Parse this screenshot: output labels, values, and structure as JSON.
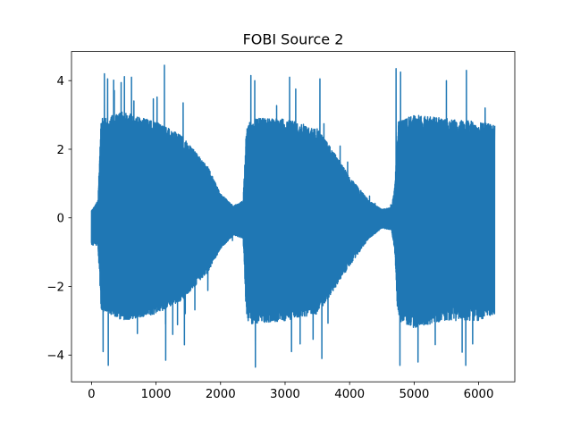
{
  "chart_data": {
    "type": "line",
    "title": "FOBI Source 2",
    "xlabel": "",
    "ylabel": "",
    "xlim": [
      -310,
      6560
    ],
    "ylim": [
      -4.78,
      4.85
    ],
    "x_ticks": [
      0,
      1000,
      2000,
      3000,
      4000,
      5000,
      6000
    ],
    "x_tick_labels": [
      "0",
      "1000",
      "2000",
      "3000",
      "4000",
      "5000",
      "6000"
    ],
    "y_ticks": [
      -4,
      -2,
      0,
      2,
      4
    ],
    "y_tick_labels": [
      "−4",
      "−2",
      "0",
      "2",
      "4"
    ],
    "grid": false,
    "legend": "none",
    "series": [
      {
        "color": "#1f77b4",
        "n_points": 6250,
        "envelope_x": [
          0,
          100,
          150,
          500,
          1000,
          1400,
          1800,
          2000,
          2200,
          2350,
          2400,
          2450,
          3000,
          3500,
          3800,
          4000,
          4300,
          4500,
          4650,
          4700,
          4750,
          5000,
          5500,
          6000,
          6249
        ],
        "envelope_upper": [
          0.2,
          0.5,
          2.9,
          3.1,
          2.8,
          2.4,
          1.5,
          0.7,
          0.35,
          0.5,
          2.6,
          2.9,
          2.9,
          2.6,
          1.8,
          1.2,
          0.5,
          0.25,
          0.3,
          0.9,
          2.8,
          3.0,
          2.9,
          2.8,
          2.7
        ],
        "envelope_lower": [
          -0.8,
          -0.8,
          -2.7,
          -3.0,
          -2.8,
          -2.4,
          -1.6,
          -0.9,
          -0.5,
          -0.6,
          -2.9,
          -3.1,
          -3.0,
          -2.8,
          -2.0,
          -1.4,
          -0.6,
          -0.3,
          -0.35,
          -1.0,
          -3.0,
          -3.2,
          -3.0,
          -3.0,
          -2.8
        ],
        "peaks_x": [
          200,
          250,
          620,
          1130,
          1420,
          2470,
          2530,
          3070,
          3540,
          4720,
          4790,
          5500,
          5810,
          6100
        ],
        "peaks_y": [
          4.2,
          4.05,
          4.1,
          4.45,
          3.35,
          4.15,
          4.0,
          4.1,
          4.05,
          4.35,
          4.25,
          4.0,
          4.3,
          3.2
        ],
        "troughs_x": [
          180,
          260,
          1150,
          1440,
          2540,
          3100,
          3570,
          4780,
          5060,
          5800
        ],
        "troughs_y": [
          -3.9,
          -4.3,
          -4.15,
          -3.7,
          -4.35,
          -3.9,
          -4.1,
          -4.3,
          -4.2,
          -4.3
        ]
      }
    ]
  }
}
